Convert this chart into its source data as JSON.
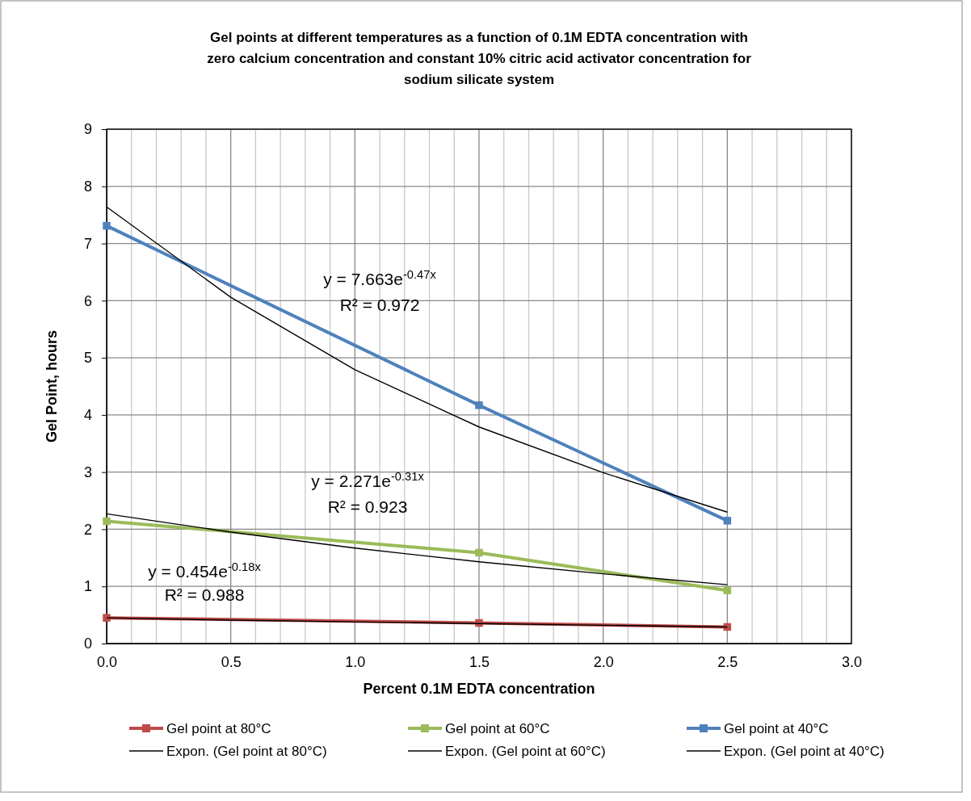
{
  "chart_data": {
    "type": "line",
    "title": "Gel points at different temperatures as a function of 0.1M EDTA concentration with zero calcium concentration and constant 10% citric acid activator concentration for sodium silicate system",
    "xlabel": "Percent 0.1M EDTA concentration",
    "ylabel": "Gel Point, hours",
    "x": [
      0,
      1.5,
      2.5
    ],
    "series": [
      {
        "name": "Gel point at 80°C",
        "color": "#be4b48",
        "values": [
          0.45,
          0.36,
          0.29
        ],
        "marker": "square"
      },
      {
        "name": "Gel point at 60°C",
        "color": "#9bbb59",
        "values": [
          2.14,
          1.59,
          0.93
        ],
        "marker": "square"
      },
      {
        "name": "Gel point at 40°C",
        "color": "#4f81bd",
        "values": [
          7.31,
          4.17,
          2.15
        ],
        "marker": "square"
      },
      {
        "name": "Expon. (Gel point at 80°C)",
        "color": "#000000",
        "x": [
          0,
          0.5,
          1,
          1.5,
          2,
          2.5
        ],
        "values": [
          0.45,
          0.41,
          0.38,
          0.35,
          0.32,
          0.29
        ],
        "marker": "none"
      },
      {
        "name": "Expon. (Gel point at 60°C)",
        "color": "#000000",
        "x": [
          0,
          0.5,
          1,
          1.5,
          2,
          2.5
        ],
        "values": [
          2.27,
          1.95,
          1.67,
          1.43,
          1.22,
          1.03
        ],
        "marker": "none"
      },
      {
        "name": "Expon. (Gel point at 40°C)",
        "color": "#000000",
        "x": [
          0,
          0.5,
          1,
          1.5,
          2,
          2.5
        ],
        "values": [
          7.64,
          6.06,
          4.79,
          3.79,
          2.99,
          2.3
        ],
        "marker": "none"
      }
    ],
    "xlim": [
      0,
      3
    ],
    "xticks": [
      {
        "value": 0,
        "label": "0.0"
      },
      {
        "value": 0.1,
        "label": null
      },
      {
        "value": 0.2,
        "label": null
      },
      {
        "value": 0.3,
        "label": null
      },
      {
        "value": 0.4,
        "label": null
      },
      {
        "value": 0.5,
        "label": "0.5"
      },
      {
        "value": 0.6,
        "label": null
      },
      {
        "value": 0.7,
        "label": null
      },
      {
        "value": 0.8,
        "label": null
      },
      {
        "value": 0.9,
        "label": null
      },
      {
        "value": 1,
        "label": "1.0"
      },
      {
        "value": 1.1,
        "label": null
      },
      {
        "value": 1.2,
        "label": null
      },
      {
        "value": 1.3,
        "label": null
      },
      {
        "value": 1.4,
        "label": null
      },
      {
        "value": 1.5,
        "label": "1.5"
      },
      {
        "value": 1.6,
        "label": null
      },
      {
        "value": 1.7,
        "label": null
      },
      {
        "value": 1.8,
        "label": null
      },
      {
        "value": 1.9,
        "label": null
      },
      {
        "value": 2,
        "label": "2.0"
      },
      {
        "value": 2.1,
        "label": null
      },
      {
        "value": 2.2,
        "label": null
      },
      {
        "value": 2.3,
        "label": null
      },
      {
        "value": 2.4,
        "label": null
      },
      {
        "value": 2.5,
        "label": "2.5"
      },
      {
        "value": 2.6,
        "label": null
      },
      {
        "value": 2.7,
        "label": null
      },
      {
        "value": 2.8,
        "label": null
      },
      {
        "value": 2.9,
        "label": null
      },
      {
        "value": 3,
        "label": "3.0"
      }
    ],
    "ylim": [
      0,
      9
    ],
    "yticks": [
      0,
      1,
      2,
      3,
      4,
      5,
      6,
      7,
      8,
      9
    ],
    "grid": true,
    "legend": "bottom",
    "line_style": "solid",
    "annotations": [
      "y = 7.663e$^{-0.47x}$",
      "R² = 0.972",
      "y = 2.271e$^{-0.31x}$",
      "R² = 0.923",
      "y = 0.454e$^{-0.18x}$",
      "R² = 0.988"
    ]
  }
}
